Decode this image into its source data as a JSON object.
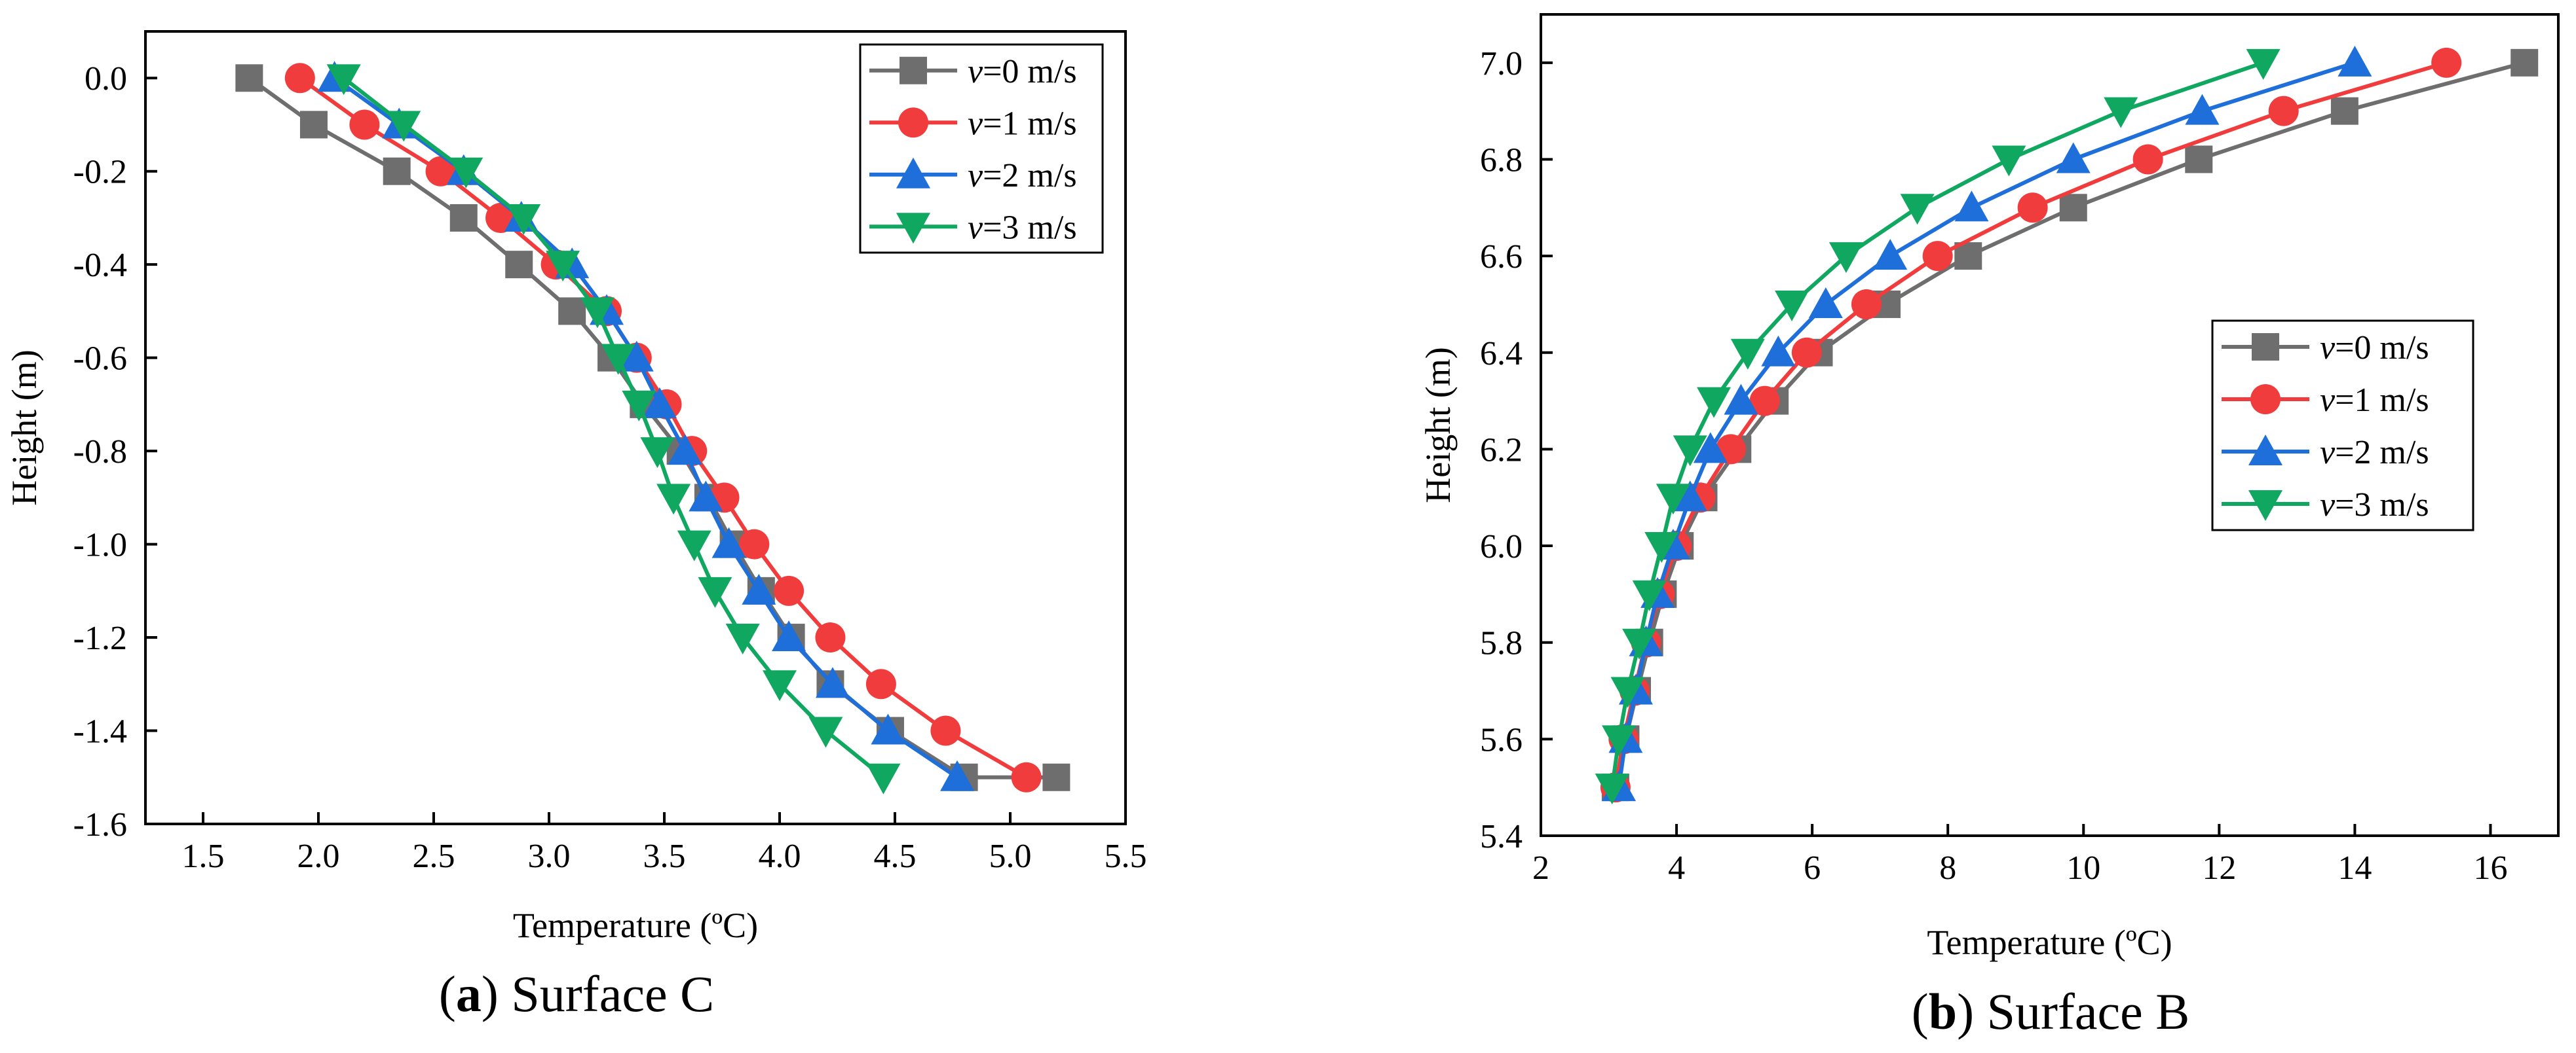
{
  "chart_data": [
    {
      "type": "line",
      "panel_label": "a",
      "caption": "Surface C",
      "xlabel": "Temperature (ºC)",
      "ylabel": "Height (m)",
      "xlim": [
        1.25,
        5.5
      ],
      "ylim": [
        -1.6,
        0.1
      ],
      "xticks": [
        1.5,
        2.0,
        2.5,
        3.0,
        3.5,
        4.0,
        4.5,
        5.0,
        5.5
      ],
      "yticks": [
        0.0,
        -0.2,
        -0.4,
        -0.6,
        -0.8,
        -1.0,
        -1.2,
        -1.4,
        -1.6
      ],
      "x_tick_labels": [
        "1.5",
        "2.0",
        "2.5",
        "3.0",
        "3.5",
        "4.0",
        "4.5",
        "5.0",
        "5.5"
      ],
      "y_tick_labels": [
        "0.0",
        "-0.2",
        "-0.4",
        "-0.6",
        "-0.8",
        "-1.0",
        "-1.2",
        "-1.4",
        "-1.6"
      ],
      "legend_position": "top-right",
      "series": [
        {
          "name": "v=0 m/s",
          "label_var": "v",
          "label_rest": "=0 m/s",
          "color": "#6e6e6e",
          "marker": "square",
          "x": [
            1.7,
            1.98,
            2.34,
            2.63,
            2.87,
            3.1,
            3.27,
            3.41,
            3.57,
            3.69,
            3.8,
            3.92,
            4.05,
            4.22,
            4.48,
            4.8,
            5.2
          ],
          "y": [
            0.0,
            -0.1,
            -0.2,
            -0.3,
            -0.4,
            -0.5,
            -0.6,
            -0.7,
            -0.8,
            -0.9,
            -1.0,
            -1.1,
            -1.2,
            -1.3,
            -1.4,
            -1.5,
            -1.5
          ]
        },
        {
          "name": "v=1 m/s",
          "label_var": "v",
          "label_rest": "=1 m/s",
          "color": "#f03c3c",
          "marker": "circle",
          "x": [
            1.92,
            2.2,
            2.53,
            2.79,
            3.03,
            3.25,
            3.38,
            3.51,
            3.62,
            3.76,
            3.89,
            4.04,
            4.22,
            4.44,
            4.72,
            5.07
          ],
          "y": [
            0.0,
            -0.1,
            -0.2,
            -0.3,
            -0.4,
            -0.5,
            -0.6,
            -0.7,
            -0.8,
            -0.9,
            -1.0,
            -1.1,
            -1.2,
            -1.3,
            -1.4,
            -1.5
          ]
        },
        {
          "name": "v=2 m/s",
          "label_var": "v",
          "label_rest": "=2 m/s",
          "color": "#1e6fd9",
          "marker": "triangle-up",
          "x": [
            2.07,
            2.35,
            2.63,
            2.88,
            3.1,
            3.25,
            3.38,
            3.48,
            3.59,
            3.68,
            3.78,
            3.91,
            4.04,
            4.23,
            4.47,
            4.77
          ],
          "y": [
            0.0,
            -0.1,
            -0.2,
            -0.3,
            -0.4,
            -0.5,
            -0.6,
            -0.7,
            -0.8,
            -0.9,
            -1.0,
            -1.1,
            -1.2,
            -1.3,
            -1.4,
            -1.5
          ]
        },
        {
          "name": "v=3 m/s",
          "label_var": "v",
          "label_rest": "=3 m/s",
          "color": "#10a860",
          "marker": "triangle-down",
          "x": [
            2.11,
            2.37,
            2.64,
            2.89,
            3.06,
            3.21,
            3.3,
            3.39,
            3.47,
            3.54,
            3.63,
            3.72,
            3.84,
            4.0,
            4.2,
            4.45
          ],
          "y": [
            0.0,
            -0.1,
            -0.2,
            -0.3,
            -0.4,
            -0.5,
            -0.6,
            -0.7,
            -0.8,
            -0.9,
            -1.0,
            -1.1,
            -1.2,
            -1.3,
            -1.4,
            -1.5
          ]
        }
      ]
    },
    {
      "type": "line",
      "panel_label": "b",
      "caption": "Surface B",
      "xlabel": "Temperature (ºC)",
      "ylabel": "Height (m)",
      "xlim": [
        2,
        17
      ],
      "ylim": [
        5.4,
        7.1
      ],
      "xticks": [
        2,
        4,
        6,
        8,
        10,
        12,
        14,
        16
      ],
      "yticks": [
        5.4,
        5.6,
        5.8,
        6.0,
        6.2,
        6.4,
        6.6,
        6.8,
        7.0
      ],
      "x_tick_labels": [
        "2",
        "4",
        "6",
        "8",
        "10",
        "12",
        "14",
        "16"
      ],
      "y_tick_labels": [
        "5.4",
        "5.6",
        "5.8",
        "6.0",
        "6.2",
        "6.4",
        "6.6",
        "6.8",
        "7.0"
      ],
      "legend_position": "center-right",
      "series": [
        {
          "name": "v=0 m/s",
          "label_var": "v",
          "label_rest": "=0 m/s",
          "color": "#6e6e6e",
          "marker": "square",
          "x": [
            3.1,
            3.25,
            3.42,
            3.6,
            3.8,
            4.05,
            4.4,
            4.9,
            5.45,
            6.1,
            7.1,
            8.3,
            9.85,
            11.7,
            13.85,
            16.5
          ],
          "y": [
            5.5,
            5.6,
            5.7,
            5.8,
            5.9,
            6.0,
            6.1,
            6.2,
            6.3,
            6.4,
            6.5,
            6.6,
            6.7,
            6.8,
            6.9,
            7.0
          ]
        },
        {
          "name": "v=1 m/s",
          "label_var": "v",
          "label_rest": "=1 m/s",
          "color": "#f03c3c",
          "marker": "circle",
          "x": [
            3.1,
            3.22,
            3.38,
            3.55,
            3.75,
            4.0,
            4.35,
            4.8,
            5.3,
            5.92,
            6.8,
            7.85,
            9.25,
            10.95,
            12.95,
            15.35
          ],
          "y": [
            5.5,
            5.6,
            5.7,
            5.8,
            5.9,
            6.0,
            6.1,
            6.2,
            6.3,
            6.4,
            6.5,
            6.6,
            6.7,
            6.8,
            6.9,
            7.0
          ]
        },
        {
          "name": "v=2 m/s",
          "label_var": "v",
          "label_rest": "=2 m/s",
          "color": "#1e6fd9",
          "marker": "triangle-up",
          "x": [
            3.15,
            3.25,
            3.4,
            3.55,
            3.72,
            3.95,
            4.2,
            4.5,
            4.95,
            5.5,
            6.2,
            7.15,
            8.35,
            9.85,
            11.75,
            14.0
          ],
          "y": [
            5.5,
            5.6,
            5.7,
            5.8,
            5.9,
            6.0,
            6.1,
            6.2,
            6.3,
            6.4,
            6.5,
            6.6,
            6.7,
            6.8,
            6.9,
            7.0
          ]
        },
        {
          "name": "v=3 m/s",
          "label_var": "v",
          "label_rest": "=3 m/s",
          "color": "#10a860",
          "marker": "triangle-down",
          "x": [
            3.05,
            3.15,
            3.28,
            3.45,
            3.6,
            3.78,
            3.95,
            4.2,
            4.55,
            5.05,
            5.7,
            6.5,
            7.55,
            8.9,
            10.55,
            12.65
          ],
          "y": [
            5.5,
            5.6,
            5.7,
            5.8,
            5.9,
            6.0,
            6.1,
            6.2,
            6.3,
            6.4,
            6.5,
            6.6,
            6.7,
            6.8,
            6.9,
            7.0
          ]
        }
      ]
    }
  ]
}
